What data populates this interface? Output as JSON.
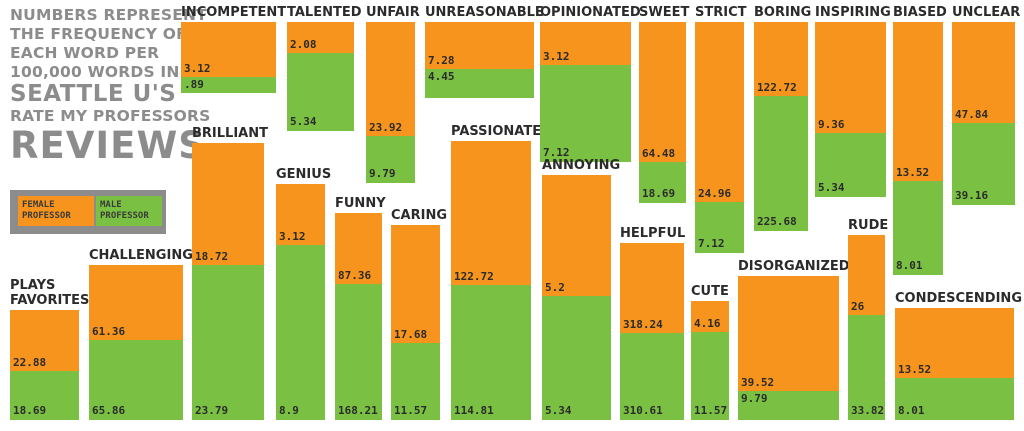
{
  "header": {
    "lines": [
      "NUMBERS REPRESENT",
      "THE FREQUENCY OF",
      "EACH WORD PER",
      "100,000 WORDS IN",
      "SEATTLE U'S",
      "RATE MY PROFESSORS",
      "REVIEWS"
    ]
  },
  "legend": {
    "female_line1": "FEMALE",
    "female_line2": "PROFESSOR",
    "male_line1": "MALE",
    "male_line2": "PROFESSOR",
    "female_color": "#f7941d",
    "male_color": "#7ac143"
  },
  "chart_data": {
    "type": "bar",
    "subtype": "stacked-proportion-tiles",
    "series": [
      {
        "name": "FEMALE PROFESSOR",
        "color": "#f7941d"
      },
      {
        "name": "MALE PROFESSOR",
        "color": "#7ac143"
      }
    ],
    "words": [
      {
        "word": "PLAYS FAVORITES",
        "female": 22.88,
        "male": 18.69
      },
      {
        "word": "CHALLENGING",
        "female": 61.36,
        "male": 65.86
      },
      {
        "word": "INCOMPETENT",
        "female": 3.12,
        "male": 0.89,
        "male_label": ".89"
      },
      {
        "word": "BRILLIANT",
        "female": 18.72,
        "male": 23.79
      },
      {
        "word": "GENIUS",
        "female": 3.12,
        "male": 8.9
      },
      {
        "word": "TALENTED",
        "female": 2.08,
        "male": 5.34
      },
      {
        "word": "FUNNY",
        "female": 87.36,
        "male": 168.21
      },
      {
        "word": "UNFAIR",
        "female": 23.92,
        "male": 9.79
      },
      {
        "word": "CARING",
        "female": 17.68,
        "male": 11.57
      },
      {
        "word": "UNREASONABLE",
        "female": 7.28,
        "male": 4.45
      },
      {
        "word": "PASSIONATE",
        "female": 122.72,
        "male": 114.81
      },
      {
        "word": "OPINIONATED",
        "female": 3.12,
        "male": 7.12
      },
      {
        "word": "ANNOYING",
        "female": 5.2,
        "male": 5.34
      },
      {
        "word": "SWEET",
        "female": 64.48,
        "male": 18.69
      },
      {
        "word": "HELPFUL",
        "female": 318.24,
        "male": 310.61
      },
      {
        "word": "STRICT",
        "female": 24.96,
        "male": 7.12
      },
      {
        "word": "CUTE",
        "female": 4.16,
        "male": 11.57
      },
      {
        "word": "BORING",
        "female": 122.72,
        "male": 225.68
      },
      {
        "word": "DISORGANIZED",
        "female": 39.52,
        "male": 9.79
      },
      {
        "word": "INSPIRING",
        "female": 9.36,
        "male": 5.34
      },
      {
        "word": "RUDE",
        "female": 26,
        "male": 33.82
      },
      {
        "word": "BIASED",
        "female": 13.52,
        "male": 8.01
      },
      {
        "word": "CONDESCENDING",
        "female": 13.52,
        "male": 8.01
      },
      {
        "word": "UNCLEAR",
        "female": 47.84,
        "male": 39.16
      }
    ]
  }
}
